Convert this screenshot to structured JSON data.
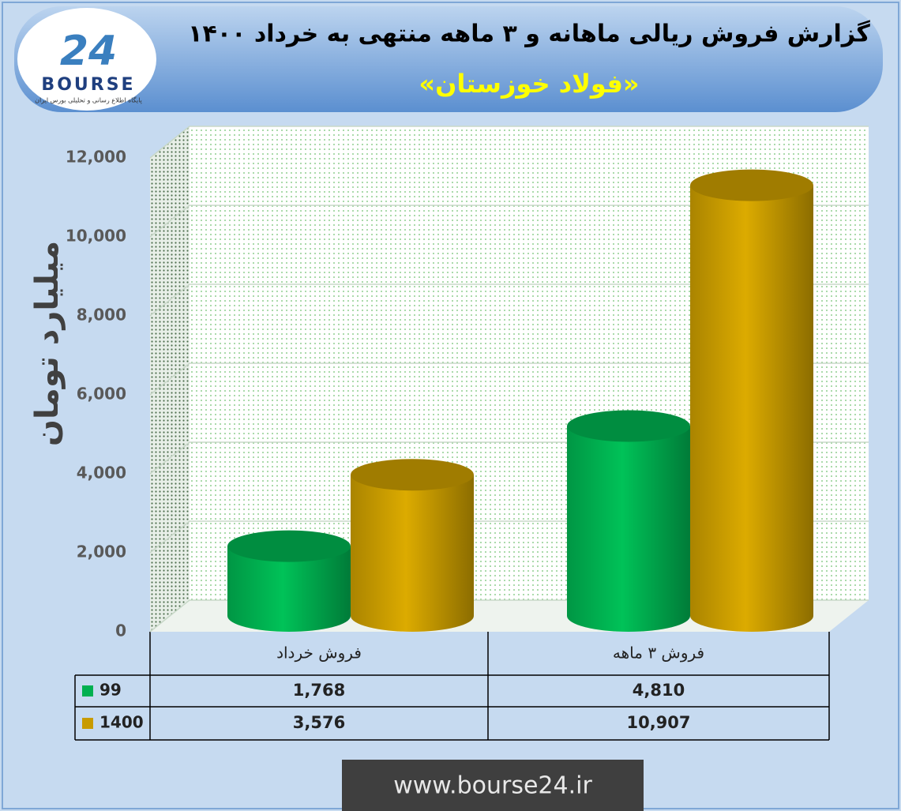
{
  "chart_data": {
    "type": "bar3d",
    "title": "گزارش فروش ریالی ماهانه و ۳ ماهه منتهی به خرداد ۱۴۰۰",
    "subtitle": "«فولاد خوزستان»",
    "y_label": "میلیارد تومان",
    "logo": {
      "number": "24",
      "name": "BOURSE",
      "tagline": "پایگاه اطلاع رسانی و تحلیلی بورس ایران"
    },
    "footer": "www.bourse24.ir",
    "categories": [
      "فروش خرداد",
      "فروش ۳ ماهه"
    ],
    "series": [
      {
        "name": "99",
        "color": "#00b050",
        "values": [
          1768,
          4810
        ],
        "value_labels": [
          "1,768",
          "4,810"
        ]
      },
      {
        "name": "1400",
        "color": "#c89b00",
        "values": [
          3576,
          10907
        ],
        "value_labels": [
          "3,576",
          "10,907"
        ]
      }
    ],
    "ylim": [
      0,
      12000
    ],
    "yticks": [
      0,
      {
        "value": 2000,
        "label": "2,000"
      },
      {
        "value": 4000,
        "label": "4,000"
      },
      {
        "value": 6000,
        "label": "6,000"
      },
      {
        "value": 8000,
        "label": "8,000"
      },
      {
        "value": 10000,
        "label": "10,000"
      },
      {
        "value": 12000,
        "label": "12,000"
      }
    ],
    "grid": true
  }
}
